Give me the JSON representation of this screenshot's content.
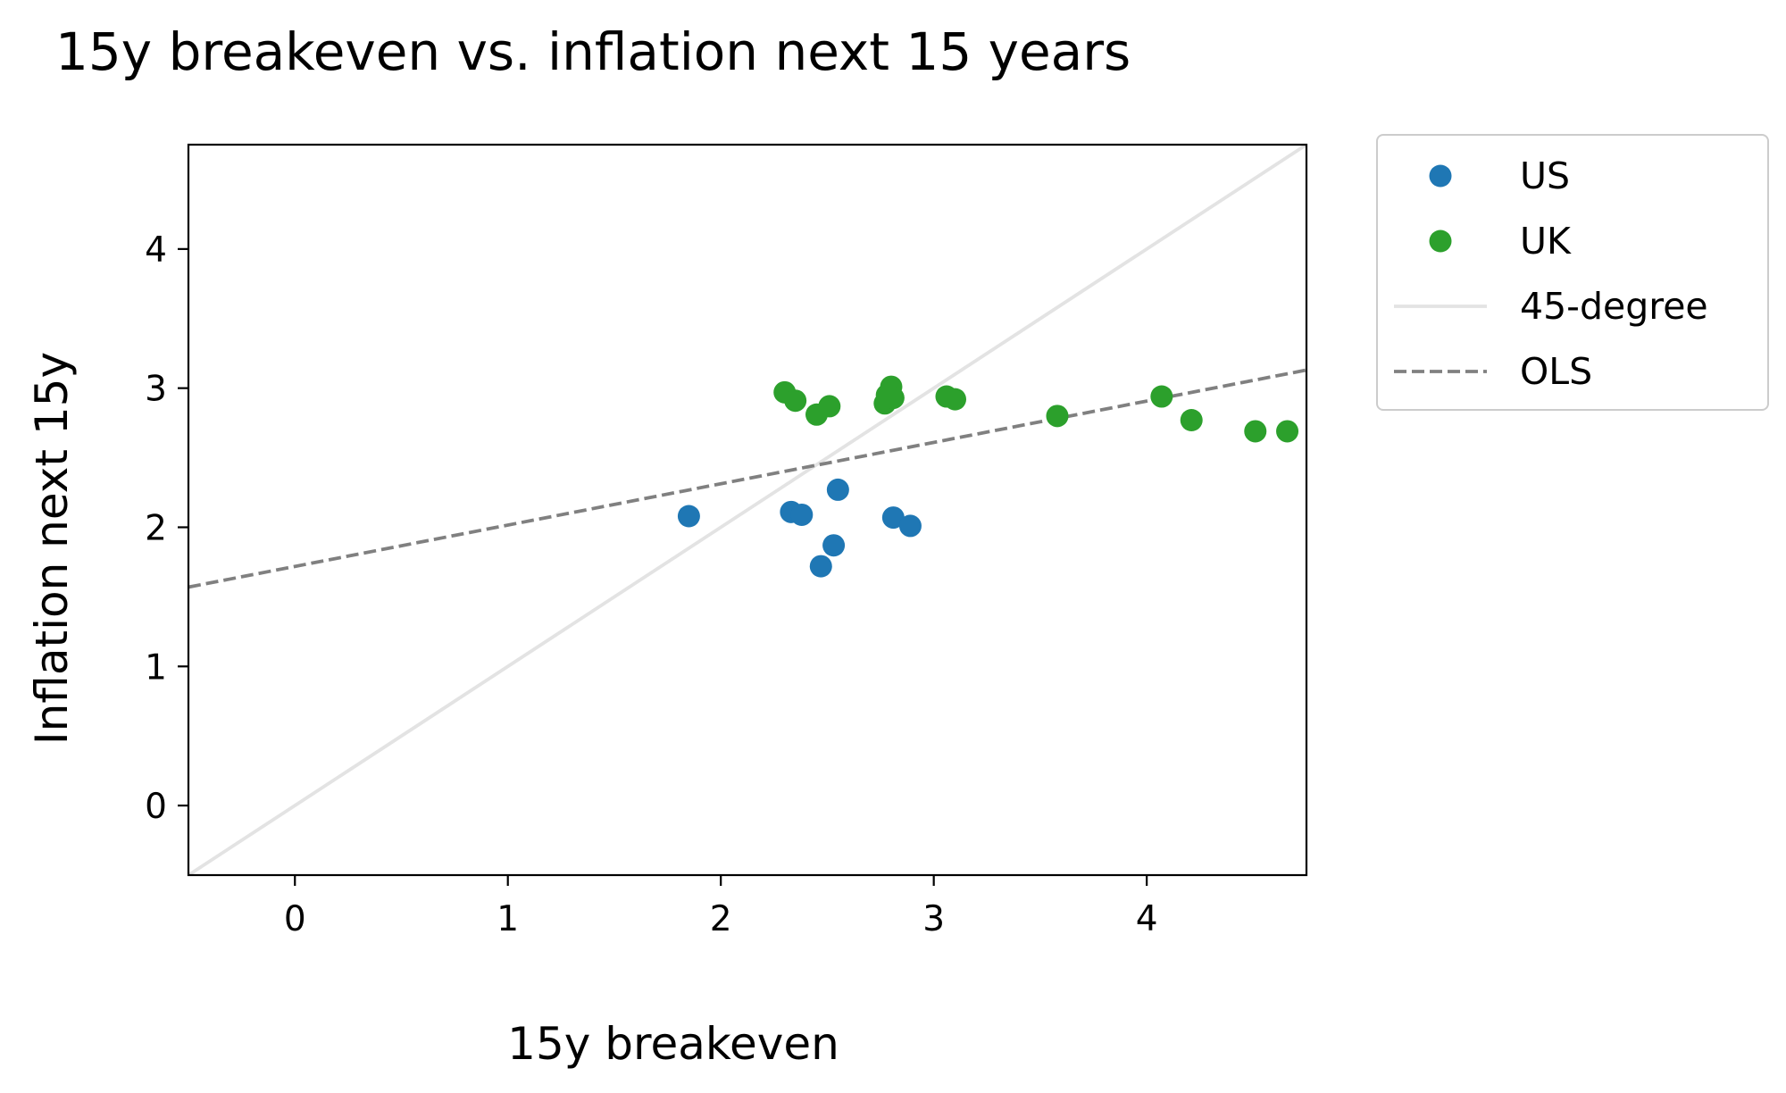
{
  "chart_data": {
    "type": "scatter",
    "title": "15y breakeven vs. inflation next 15 years",
    "xlabel": "15y breakeven",
    "ylabel": "Inflation next 15y",
    "xlim": [
      -0.5,
      4.75
    ],
    "ylim": [
      -0.5,
      4.75
    ],
    "xticks": [
      0,
      1,
      2,
      3,
      4
    ],
    "yticks": [
      0,
      1,
      2,
      3,
      4
    ],
    "grid": false,
    "legend_position": "outside upper right",
    "series": [
      {
        "name": "US",
        "kind": "scatter",
        "color": "#1f77b4",
        "points": [
          {
            "x": 1.85,
            "y": 2.08
          },
          {
            "x": 2.33,
            "y": 2.11
          },
          {
            "x": 2.38,
            "y": 2.09
          },
          {
            "x": 2.47,
            "y": 1.72
          },
          {
            "x": 2.53,
            "y": 1.87
          },
          {
            "x": 2.55,
            "y": 2.27
          },
          {
            "x": 2.81,
            "y": 2.07
          },
          {
            "x": 2.89,
            "y": 2.01
          }
        ]
      },
      {
        "name": "UK",
        "kind": "scatter",
        "color": "#2ca02c",
        "points": [
          {
            "x": 2.3,
            "y": 2.97
          },
          {
            "x": 2.35,
            "y": 2.91
          },
          {
            "x": 2.45,
            "y": 2.81
          },
          {
            "x": 2.51,
            "y": 2.87
          },
          {
            "x": 2.77,
            "y": 2.89
          },
          {
            "x": 2.78,
            "y": 2.95
          },
          {
            "x": 2.8,
            "y": 3.01
          },
          {
            "x": 2.81,
            "y": 2.93
          },
          {
            "x": 3.06,
            "y": 2.94
          },
          {
            "x": 3.1,
            "y": 2.92
          },
          {
            "x": 3.58,
            "y": 2.8
          },
          {
            "x": 4.07,
            "y": 2.94
          },
          {
            "x": 4.21,
            "y": 2.77
          },
          {
            "x": 4.51,
            "y": 2.69
          },
          {
            "x": 4.66,
            "y": 2.69
          }
        ]
      },
      {
        "name": "45-degree",
        "kind": "line",
        "color": "#e3e3e3",
        "style": "solid",
        "points": [
          {
            "x": -0.5,
            "y": -0.5
          },
          {
            "x": 4.75,
            "y": 4.75
          }
        ]
      },
      {
        "name": "OLS",
        "kind": "line",
        "color": "#808080",
        "style": "dashed",
        "points": [
          {
            "x": -0.5,
            "y": 1.57
          },
          {
            "x": 4.75,
            "y": 3.13
          }
        ]
      }
    ]
  }
}
